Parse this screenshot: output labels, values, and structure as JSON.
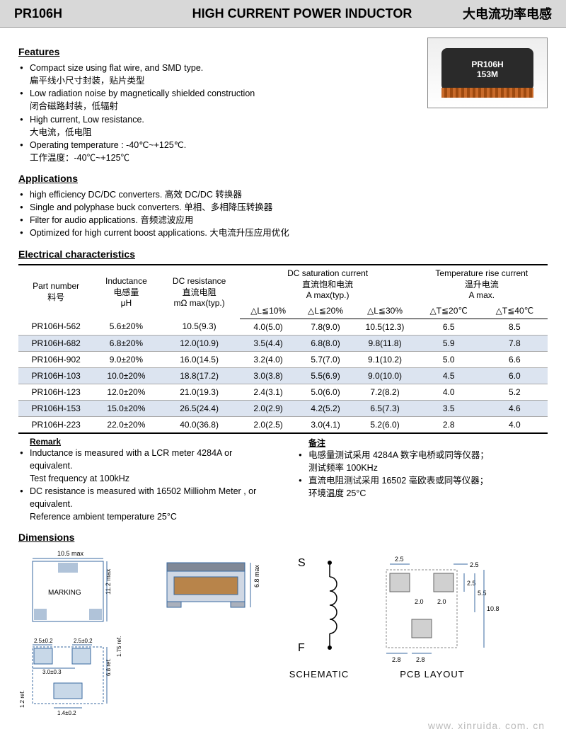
{
  "header": {
    "code": "PR106H",
    "title": "HIGH CURRENT POWER INDUCTOR",
    "cn": "大电流功率电感"
  },
  "product_label": {
    "line1": "PR106H",
    "line2": "153M"
  },
  "features": {
    "title": "Features",
    "items": [
      {
        "en": "Compact size using flat wire, and SMD type.",
        "cn": "扁平线小尺寸封装，贴片类型"
      },
      {
        "en": "Low radiation noise by magnetically shielded construction",
        "cn": "闭合磁路封装，低辐射"
      },
      {
        "en": "High current, Low resistance.",
        "cn": "大电流，低电阻"
      },
      {
        "en": "Operating temperature : -40℃~+125℃.",
        "cn": "工作温度：-40℃~+125℃"
      }
    ]
  },
  "applications": {
    "title": "Applications",
    "items": [
      "high efficiency DC/DC converters.  高效 DC/DC 转换器",
      "Single and polyphase buck converters.  单相、多相降压转换器",
      "Filter for audio applications.  音频滤波应用",
      "Optimized for high current boost applications.  大电流升压应用优化"
    ]
  },
  "elec": {
    "title": "Electrical  characteristics",
    "cols": {
      "part": "Part number\n料号",
      "ind": "Inductance\n电感量\nμH",
      "dcr": "DC resistance\n直流电阻\nmΩ max(typ.)",
      "dcsat": "DC saturation current\n直流饱和电流\nA max(typ.)",
      "trise": "Temperature rise current\n温升电流\nA max.",
      "dl10": "△L≦10%",
      "dl20": "△L≦20%",
      "dl30": "△L≦30%",
      "dt20": "△T≦20℃",
      "dt40": "△T≦40℃"
    },
    "rows": [
      {
        "pn": "PR106H-562",
        "ind": "5.6±20%",
        "dcr": "10.5(9.3)",
        "d10": "4.0(5.0)",
        "d20": "7.8(9.0)",
        "d30": "10.5(12.3)",
        "t20": "6.5",
        "t40": "8.5"
      },
      {
        "pn": "PR106H-682",
        "ind": "6.8±20%",
        "dcr": "12.0(10.9)",
        "d10": "3.5(4.4)",
        "d20": "6.8(8.0)",
        "d30": "9.8(11.8)",
        "t20": "5.9",
        "t40": "7.8"
      },
      {
        "pn": "PR106H-902",
        "ind": "9.0±20%",
        "dcr": "16.0(14.5)",
        "d10": "3.2(4.0)",
        "d20": "5.7(7.0)",
        "d30": "9.1(10.2)",
        "t20": "5.0",
        "t40": "6.6"
      },
      {
        "pn": "PR106H-103",
        "ind": "10.0±20%",
        "dcr": "18.8(17.2)",
        "d10": "3.0(3.8)",
        "d20": "5.5(6.9)",
        "d30": "9.0(10.0)",
        "t20": "4.5",
        "t40": "6.0"
      },
      {
        "pn": "PR106H-123",
        "ind": "12.0±20%",
        "dcr": "21.0(19.3)",
        "d10": "2.4(3.1)",
        "d20": "5.0(6.0)",
        "d30": "7.2(8.2)",
        "t20": "4.0",
        "t40": "5.2"
      },
      {
        "pn": "PR106H-153",
        "ind": "15.0±20%",
        "dcr": "26.5(24.4)",
        "d10": "2.0(2.9)",
        "d20": "4.2(5.2)",
        "d30": "6.5(7.3)",
        "t20": "3.5",
        "t40": "4.6"
      },
      {
        "pn": "PR106H-223",
        "ind": "22.0±20%",
        "dcr": "40.0(36.8)",
        "d10": "2.0(2.5)",
        "d20": "3.0(4.1)",
        "d30": "5.2(6.0)",
        "t20": "2.8",
        "t40": "4.0"
      }
    ]
  },
  "remark": {
    "title": "Remark",
    "cn_title": "备注",
    "left": [
      "Inductance is measured with a LCR meter 4284A or equivalent.\nTest frequency at 100kHz",
      "DC resistance is measured with 16502 Milliohm Meter , or equivalent.\nReference ambient temperature 25°C"
    ],
    "right": [
      "电感量测试采用 4284A  数字电桥或同等仪器；\n测试频率 100KHz",
      "直流电阻测试采用 16502 毫欧表或同等仪器；\n环境温度 25°C"
    ]
  },
  "dims": {
    "title": "Dimensions",
    "top_w": "10.5 max",
    "marking": "MARKING",
    "side_h": "11.2 max",
    "iso_h": "6.8 max",
    "pad1": "2.5±0.2",
    "pad2": "2.5±0.2",
    "pad3": "3.0±0.3",
    "pad_h": "6.8 ref.",
    "pad_side": "1.75 ref.",
    "pad_b": "1.2 ref.",
    "pad_bw": "1.4±0.2",
    "s": "S",
    "f": "F",
    "schematic": "SCHEMATIC",
    "pcb": "PCB LAYOUT",
    "pcb_a": "2.5",
    "pcb_b": "2.5",
    "pcb_c": "2.0",
    "pcb_d": "2.0",
    "pcb_e": "2.8",
    "pcb_f": "2.8",
    "pcb_g": "5.5",
    "pcb_h": "10.8"
  },
  "watermark": "www. xinruida. com. cn",
  "colors": {
    "header_bg": "#d8d8d8",
    "row_alt": "#dce4f0",
    "coil": "#c86a2a"
  }
}
